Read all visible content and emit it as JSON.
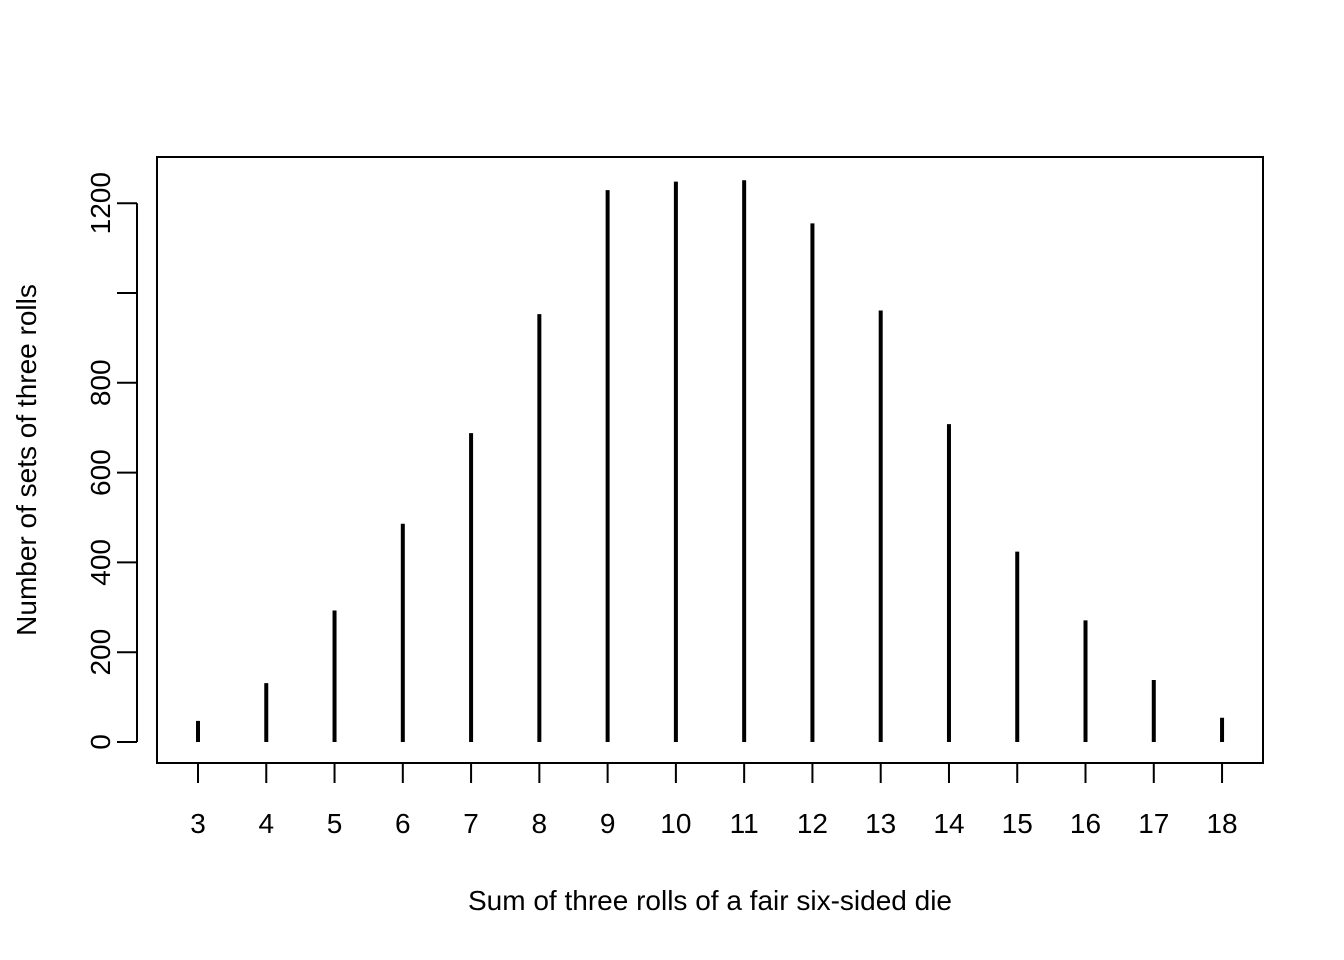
{
  "chart_data": {
    "type": "bar",
    "style": "spike",
    "title": "",
    "xlabel": "Sum of three rolls of a fair six-sided die",
    "ylabel": "Number of sets of three rolls",
    "categories": [
      "3",
      "4",
      "5",
      "6",
      "7",
      "8",
      "9",
      "10",
      "11",
      "12",
      "13",
      "14",
      "15",
      "16",
      "17",
      "18"
    ],
    "values": [
      47,
      131,
      293,
      486,
      688,
      953,
      1229,
      1248,
      1251,
      1155,
      961,
      708,
      424,
      271,
      138,
      54
    ],
    "x_ticks": [
      "3",
      "4",
      "5",
      "6",
      "7",
      "8",
      "9",
      "10",
      "11",
      "12",
      "13",
      "14",
      "15",
      "16",
      "17",
      "18"
    ],
    "y_ticks": [
      0,
      200,
      400,
      600,
      800,
      1000,
      1200
    ],
    "y_tick_labels": [
      "0",
      "200",
      "400",
      "600",
      "800",
      "",
      "1200"
    ],
    "ylim": [
      0,
      1300
    ],
    "grid": false,
    "legend": "none",
    "color": "#000000"
  }
}
